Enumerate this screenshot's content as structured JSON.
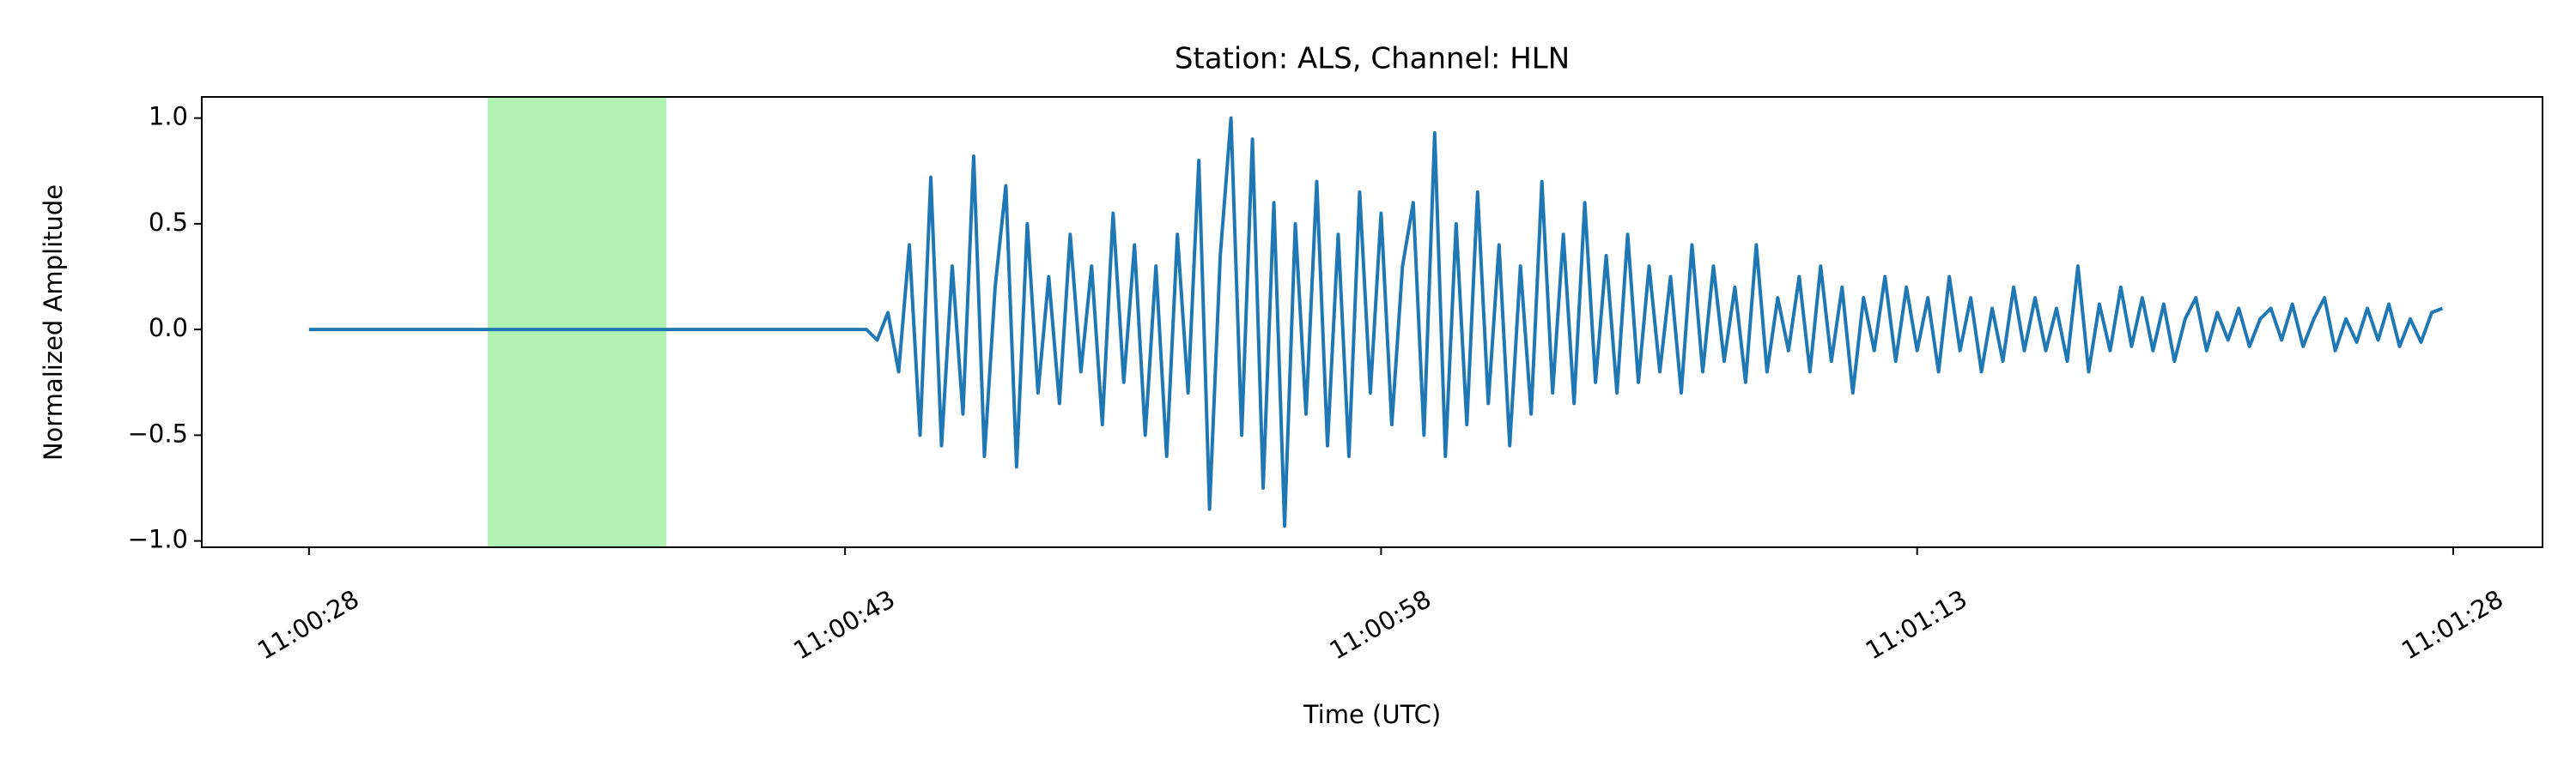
{
  "chart_data": {
    "type": "line",
    "title": "Station: ALS, Channel: HLN",
    "xlabel": "Time (UTC)",
    "ylabel": "Normalized Amplitude",
    "xlim": [
      39625,
      39690.5
    ],
    "ylim": [
      -1.03,
      1.1
    ],
    "xticks": [
      {
        "value": 39628,
        "label": "11:00:28"
      },
      {
        "value": 39643,
        "label": "11:00:43"
      },
      {
        "value": 39658,
        "label": "11:00:58"
      },
      {
        "value": 39673,
        "label": "11:01:13"
      },
      {
        "value": 39688,
        "label": "11:01:28"
      }
    ],
    "yticks": [
      {
        "value": -1,
        "label": "−1.0"
      },
      {
        "value": -0.5,
        "label": "−0.5"
      },
      {
        "value": 0,
        "label": "0.0"
      },
      {
        "value": 0.5,
        "label": "0.5"
      },
      {
        "value": 1,
        "label": "1.0"
      }
    ],
    "grid": false,
    "highlight": {
      "xmin": 39633,
      "xmax": 39638,
      "color": "#b2f2b2"
    },
    "series": [
      {
        "color": "#1f77b4",
        "x": [
          39628,
          39643.6,
          39643.9,
          39644.2,
          39644.5,
          39644.8,
          39645.1,
          39645.4,
          39645.7,
          39646.0,
          39646.3,
          39646.6,
          39646.9,
          39647.2,
          39647.5,
          39647.8,
          39648.1,
          39648.4,
          39648.7,
          39649.0,
          39649.3,
          39649.6,
          39649.9,
          39650.2,
          39650.5,
          39650.8,
          39651.1,
          39651.4,
          39651.7,
          39652.0,
          39652.3,
          39652.6,
          39652.9,
          39653.2,
          39653.5,
          39653.8,
          39654.1,
          39654.4,
          39654.7,
          39655.0,
          39655.3,
          39655.6,
          39655.9,
          39656.2,
          39656.5,
          39656.8,
          39657.1,
          39657.4,
          39657.7,
          39658.0,
          39658.3,
          39658.6,
          39658.9,
          39659.2,
          39659.5,
          39659.8,
          39660.1,
          39660.4,
          39660.7,
          39661.0,
          39661.3,
          39661.6,
          39661.9,
          39662.2,
          39662.5,
          39662.8,
          39663.1,
          39663.4,
          39663.7,
          39664.0,
          39664.3,
          39664.6,
          39664.9,
          39665.2,
          39665.5,
          39665.8,
          39666.1,
          39666.4,
          39666.7,
          39667.0,
          39667.3,
          39667.6,
          39667.9,
          39668.2,
          39668.5,
          39668.8,
          39669.1,
          39669.4,
          39669.7,
          39670.0,
          39670.3,
          39670.6,
          39670.9,
          39671.2,
          39671.5,
          39671.8,
          39672.1,
          39672.4,
          39672.7,
          39673.0,
          39673.3,
          39673.6,
          39673.9,
          39674.2,
          39674.5,
          39674.8,
          39675.1,
          39675.4,
          39675.7,
          39676.0,
          39676.3,
          39676.6,
          39676.9,
          39677.2,
          39677.5,
          39677.8,
          39678.1,
          39678.4,
          39678.7,
          39679.0,
          39679.3,
          39679.6,
          39679.9,
          39680.2,
          39680.5,
          39680.8,
          39681.1,
          39681.4,
          39681.7,
          39682.0,
          39682.3,
          39682.6,
          39682.9,
          39683.2,
          39683.5,
          39683.8,
          39684.1,
          39684.4,
          39684.7,
          39685.0,
          39685.3,
          39685.6,
          39685.9,
          39686.2,
          39686.5,
          39686.8,
          39687.1,
          39687.4,
          39687.7
        ],
        "values": [
          0,
          0,
          -0.05,
          0.08,
          -0.2,
          0.4,
          -0.5,
          0.72,
          -0.55,
          0.3,
          -0.4,
          0.82,
          -0.6,
          0.2,
          0.68,
          -0.65,
          0.5,
          -0.3,
          0.25,
          -0.35,
          0.45,
          -0.2,
          0.3,
          -0.45,
          0.55,
          -0.25,
          0.4,
          -0.5,
          0.3,
          -0.6,
          0.45,
          -0.3,
          0.8,
          -0.85,
          0.35,
          1.0,
          -0.5,
          0.9,
          -0.75,
          0.6,
          -0.93,
          0.5,
          -0.4,
          0.7,
          -0.55,
          0.45,
          -0.6,
          0.65,
          -0.3,
          0.55,
          -0.45,
          0.3,
          0.6,
          -0.5,
          0.93,
          -0.6,
          0.5,
          -0.45,
          0.65,
          -0.35,
          0.4,
          -0.55,
          0.3,
          -0.4,
          0.7,
          -0.3,
          0.45,
          -0.35,
          0.6,
          -0.25,
          0.35,
          -0.3,
          0.45,
          -0.25,
          0.3,
          -0.2,
          0.25,
          -0.3,
          0.4,
          -0.2,
          0.3,
          -0.15,
          0.2,
          -0.25,
          0.4,
          -0.2,
          0.15,
          -0.1,
          0.25,
          -0.2,
          0.3,
          -0.15,
          0.2,
          -0.3,
          0.15,
          -0.1,
          0.25,
          -0.15,
          0.2,
          -0.1,
          0.15,
          -0.2,
          0.25,
          -0.1,
          0.15,
          -0.2,
          0.1,
          -0.15,
          0.2,
          -0.1,
          0.15,
          -0.1,
          0.1,
          -0.15,
          0.3,
          -0.2,
          0.12,
          -0.1,
          0.2,
          -0.08,
          0.15,
          -0.1,
          0.12,
          -0.15,
          0.05,
          0.15,
          -0.1,
          0.08,
          -0.05,
          0.1,
          -0.08,
          0.05,
          0.1,
          -0.05,
          0.12,
          -0.08,
          0.05,
          0.15,
          -0.1,
          0.05,
          -0.06,
          0.1,
          -0.05,
          0.12,
          -0.08,
          0.05,
          -0.06,
          0.08,
          0.1
        ]
      }
    ]
  }
}
